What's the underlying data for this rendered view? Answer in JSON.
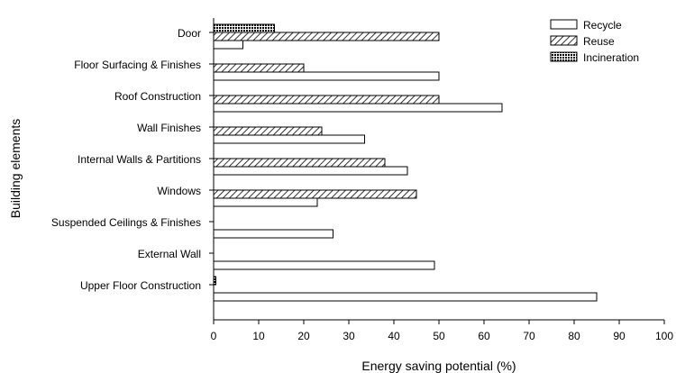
{
  "chart_data": {
    "type": "bar",
    "orientation": "horizontal",
    "xlabel": "Energy saving potential (%)",
    "ylabel": "Building elements",
    "xlim": [
      0,
      100
    ],
    "xticks": [
      0,
      10,
      20,
      30,
      40,
      50,
      60,
      70,
      80,
      90,
      100
    ],
    "categories": [
      "Door",
      "Floor Surfacing & Finishes",
      "Roof Construction",
      "Wall Finishes",
      "Internal Walls & Partitions",
      "Windows",
      "Suspended Ceilings & Finishes",
      "External Wall",
      "Upper Floor Construction"
    ],
    "series": [
      {
        "name": "Recycle",
        "values": [
          6.5,
          50,
          64,
          33.5,
          43,
          23,
          26.5,
          49,
          85
        ],
        "pattern": "none"
      },
      {
        "name": "Reuse",
        "values": [
          50,
          20,
          50,
          24,
          38,
          45,
          0,
          0,
          0
        ],
        "pattern": "hatch"
      },
      {
        "name": "Incineration",
        "values": [
          13.5,
          0,
          0,
          0,
          0,
          0,
          0,
          0,
          0.5
        ],
        "pattern": "crosshatch"
      }
    ],
    "legend_position": "top-right",
    "grid": false
  }
}
